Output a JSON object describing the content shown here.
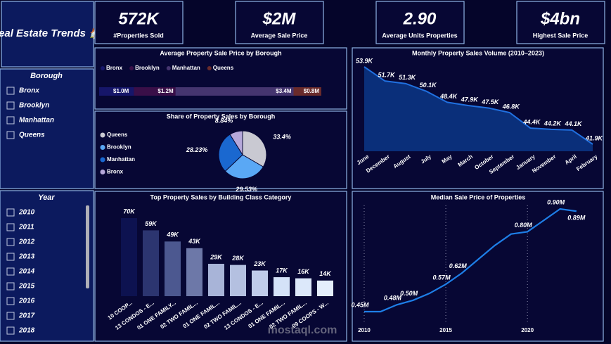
{
  "header": {
    "title": "Real Estate Trends 🏠"
  },
  "kpis": [
    {
      "value": "572K",
      "label": "#Properties Sold"
    },
    {
      "value": "$2M",
      "label": "Average Sale Price"
    },
    {
      "value": "2.90",
      "label": "Average Units Properties"
    },
    {
      "value": "$4bn",
      "label": "Highest Sale Price"
    }
  ],
  "slicers": [
    {
      "title": "Borough",
      "items": [
        "Bronx",
        "Brooklyn",
        "Manhattan",
        "Queens"
      ]
    },
    {
      "title": "Year",
      "items": [
        "2010",
        "2011",
        "2012",
        "2013",
        "2014",
        "2015",
        "2016",
        "2017",
        "2018"
      ]
    }
  ],
  "watermark": "mostaql.com",
  "chart_data": [
    {
      "type": "stacked-bar",
      "title": "Average Property Sale Price by Borough",
      "series": [
        {
          "name": "Bronx",
          "color": "#16166a",
          "values": [
            1000000
          ],
          "value_labels": [
            "$1.0M"
          ]
        },
        {
          "name": "Brooklyn",
          "color": "#3a0f48",
          "values": [
            1200000
          ],
          "value_labels": [
            "$1.2M"
          ]
        },
        {
          "name": "Manhattan",
          "color": "#45356f",
          "values": [
            3400000
          ],
          "value_labels": [
            "$3.4M"
          ]
        },
        {
          "name": "Queens",
          "color": "#6a2b2b",
          "values": [
            800000
          ],
          "value_labels": [
            "$0.8M"
          ]
        }
      ]
    },
    {
      "type": "pie",
      "title": "Share of Property Sales by Borough",
      "categories": [
        "Queens",
        "Brooklyn",
        "Manhattan",
        "Bronx"
      ],
      "values": [
        33.4,
        29.53,
        28.23,
        8.84
      ],
      "value_labels": [
        "33.4%",
        "29.53%",
        "28.23%",
        "8.84%"
      ],
      "colors": [
        "#c9c9d2",
        "#5aa8f5",
        "#1a68d0",
        "#b6a8da"
      ]
    },
    {
      "type": "area",
      "title": "Monthly Property Sales Volume (2010–2023)",
      "categories": [
        "June",
        "December",
        "August",
        "July",
        "May",
        "March",
        "October",
        "September",
        "January",
        "November",
        "April",
        "February"
      ],
      "values": [
        53900,
        51700,
        51300,
        50100,
        48400,
        47900,
        47500,
        46800,
        44400,
        44200,
        44100,
        41900
      ],
      "value_labels": [
        "53.9K",
        "51.7K",
        "51.3K",
        "50.1K",
        "48.4K",
        "47.9K",
        "47.5K",
        "46.8K",
        "44.4K",
        "44.2K",
        "44.1K",
        "41.9K"
      ],
      "color": "#0a2f7a",
      "line_color": "#2070e0"
    },
    {
      "type": "bar",
      "title": "Top Property Sales by Building Class Category",
      "categories": [
        "10 COOP...",
        "13 CONDOS - E...",
        "01 ONE FAMILY...",
        "02 TWO FAMIL...",
        "01 ONE FAMIL...",
        "02 TWO FAMIL...",
        "13 CONDOS - E...",
        "01 ONE FAMIL...",
        "02 TWO FAMIL...",
        "09 COOPS - W..."
      ],
      "values": [
        70000,
        59000,
        49000,
        43000,
        29000,
        28000,
        23000,
        17000,
        16000,
        14000
      ],
      "value_labels": [
        "70K",
        "59K",
        "49K",
        "43K",
        "29K",
        "28K",
        "23K",
        "17K",
        "16K",
        "14K"
      ],
      "colors": [
        "#0d1250",
        "#2c3570",
        "#4c5890",
        "#6d78a8",
        "#a8b4d8",
        "#b4c0e0",
        "#c0ccea",
        "#d4e2f8",
        "#dce8fa",
        "#e4eefc"
      ]
    },
    {
      "type": "line",
      "title": "Median Sale Price of Properties",
      "x": [
        2010,
        2011,
        2012,
        2013,
        2014,
        2015,
        2016,
        2017,
        2018,
        2019,
        2020,
        2021,
        2022,
        2023
      ],
      "values": [
        450000,
        450000,
        480000,
        500000,
        530000,
        570000,
        620000,
        680000,
        740000,
        790000,
        800000,
        850000,
        900000,
        890000
      ],
      "value_labels": [
        "0.45M",
        null,
        "0.48M",
        "0.50M",
        null,
        "0.57M",
        "0.62M",
        null,
        null,
        null,
        "0.80M",
        null,
        "0.90M",
        "0.89M"
      ],
      "xlim": [
        2009.7,
        2024.3
      ],
      "xticks": [
        2010,
        2015,
        2020
      ],
      "color": "#1e7fe8",
      "grid": true
    }
  ]
}
